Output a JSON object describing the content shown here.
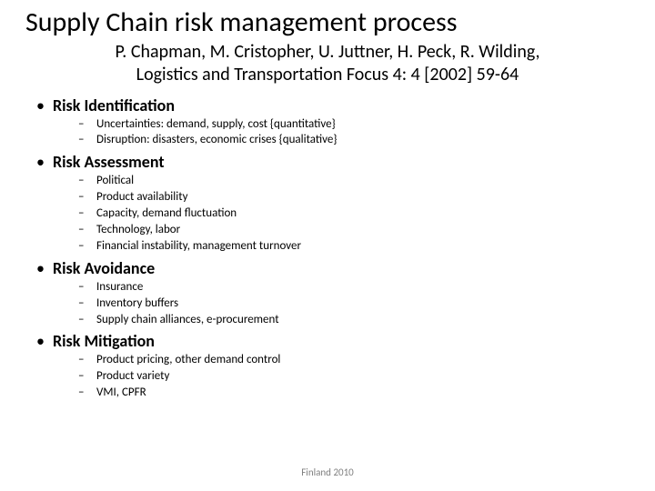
{
  "title": "Supply Chain risk management process",
  "subtitle_line1": "P. Chapman, M. Cristopher, U. Juttner, H. Peck, R. Wilding,",
  "subtitle_line2": "Logistics and Transportation Focus 4: 4 [2002] 59-64",
  "sections": {
    "s0": {
      "heading": "Risk Identification",
      "items": {
        "i0": "Uncertainties: demand, supply, cost {quantitative}",
        "i1": "Disruption: disasters, economic crises {qualitative}"
      }
    },
    "s1": {
      "heading": "Risk Assessment",
      "items": {
        "i0": "Political",
        "i1": "Product availability",
        "i2": "Capacity, demand fluctuation",
        "i3": "Technology, labor",
        "i4": "Financial instability, management turnover"
      }
    },
    "s2": {
      "heading": "Risk Avoidance",
      "items": {
        "i0": "Insurance",
        "i1": "Inventory buffers",
        "i2": "Supply chain alliances, e-procurement"
      }
    },
    "s3": {
      "heading": "Risk Mitigation",
      "items": {
        "i0": "Product pricing, other demand control",
        "i1": "Product variety",
        "i2": "VMI, CPFR"
      }
    }
  },
  "footer": "Finland 2010",
  "colors": {
    "background": "#ffffff",
    "text": "#000000",
    "footer": "#7f7f7f"
  },
  "typography": {
    "title_fontsize": 30,
    "subtitle_fontsize": 20,
    "l1_fontsize": 18,
    "l2_fontsize": 13,
    "footer_fontsize": 11,
    "font_family": "Calibri"
  }
}
